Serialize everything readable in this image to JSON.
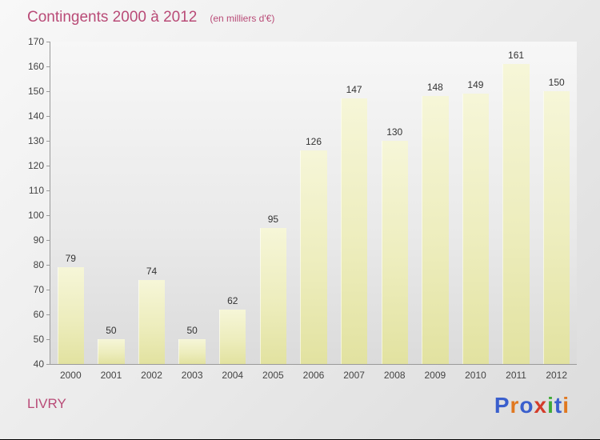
{
  "title": {
    "text": "Contingents 2000 à 2012",
    "subtitle": "(en milliers d'€)",
    "color": "#b94b77"
  },
  "footer": {
    "brand": "LIVRY",
    "logo_letters": [
      {
        "ch": "P",
        "color": "#3a5fcd"
      },
      {
        "ch": "r",
        "color": "#e07820"
      },
      {
        "ch": "o",
        "color": "#3a5fcd"
      },
      {
        "ch": "x",
        "color": "#d43b2a"
      },
      {
        "ch": "i",
        "color": "#3faa36"
      },
      {
        "ch": "t",
        "color": "#3a5fcd"
      },
      {
        "ch": "i",
        "color": "#e07820"
      }
    ]
  },
  "chart_data": {
    "type": "bar",
    "title": "Contingents 2000 à 2012",
    "subtitle": "(en milliers d'€)",
    "categories": [
      "2000",
      "2001",
      "2002",
      "2003",
      "2004",
      "2005",
      "2006",
      "2007",
      "2008",
      "2009",
      "2010",
      "2011",
      "2012"
    ],
    "values": [
      79,
      50,
      74,
      50,
      62,
      95,
      126,
      147,
      130,
      148,
      149,
      161,
      150
    ],
    "xlabel": "",
    "ylabel": "",
    "ylim": [
      40,
      170
    ],
    "ytick_step": 10,
    "bar_color": "#ededbd",
    "grid": false,
    "legend": "none"
  }
}
